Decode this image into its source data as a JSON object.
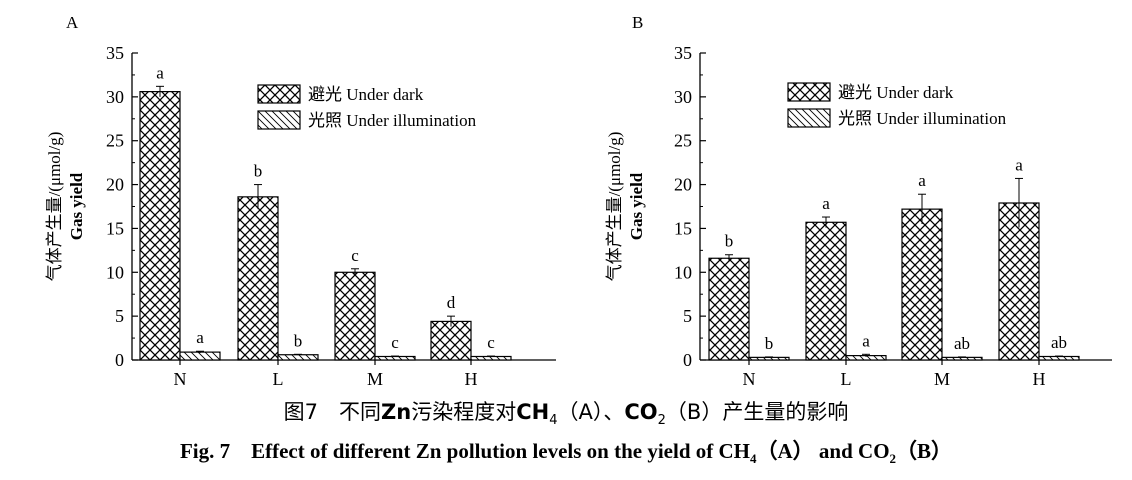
{
  "caption": {
    "cn_prefix": "图7　不同",
    "cn_zn": "Zn",
    "cn_mid": "污染程度对",
    "cn_ch": "CH",
    "cn_ch_sub": "4",
    "cn_a": "（A）、",
    "cn_co": "CO",
    "cn_co_sub": "2",
    "cn_end": "（B）产生量的影响",
    "en_main": "Fig. 7 Effect of different Zn pollution levels on the yield of CH",
    "en_ch_sub": "4",
    "en_mid": "（A） and CO",
    "en_co_sub": "2",
    "en_end": "（B）"
  },
  "legend": {
    "dark": "避光 Under dark",
    "light": "光照 Under illumination"
  },
  "chart_data": [
    {
      "panel": "A",
      "type": "bar",
      "ylabel_cn": "气体产生量/(μmol/g)",
      "ylabel_en": "Gas yield",
      "xlabel": "",
      "categories": [
        "N",
        "L",
        "M",
        "H"
      ],
      "ylim": [
        0,
        35
      ],
      "yticks": [
        0,
        5,
        10,
        15,
        20,
        25,
        30,
        35
      ],
      "series": [
        {
          "name": "避光 Under dark",
          "pattern": "crosshatch",
          "values": [
            30.6,
            18.6,
            10.0,
            4.4
          ],
          "errors": [
            0.6,
            1.4,
            0.4,
            0.6
          ],
          "letters": [
            "a",
            "b",
            "c",
            "d"
          ]
        },
        {
          "name": "光照 Under illumination",
          "pattern": "diagonal",
          "values": [
            0.9,
            0.6,
            0.4,
            0.4
          ],
          "errors": [
            0.1,
            0.05,
            0.05,
            0.05
          ],
          "letters": [
            "a",
            "b",
            "c",
            "c"
          ]
        }
      ]
    },
    {
      "panel": "B",
      "type": "bar",
      "ylabel_cn": "气体产生量/(μmol/g)",
      "ylabel_en": "Gas yield",
      "xlabel": "",
      "categories": [
        "N",
        "L",
        "M",
        "H"
      ],
      "ylim": [
        0,
        35
      ],
      "yticks": [
        0,
        5,
        10,
        15,
        20,
        25,
        30,
        35
      ],
      "series": [
        {
          "name": "避光 Under dark",
          "pattern": "crosshatch",
          "values": [
            11.6,
            15.7,
            17.2,
            17.9
          ],
          "errors": [
            0.4,
            0.6,
            1.7,
            2.8
          ],
          "letters": [
            "b",
            "a",
            "a",
            "a"
          ]
        },
        {
          "name": "光照 Under illumination",
          "pattern": "diagonal",
          "values": [
            0.3,
            0.5,
            0.3,
            0.4
          ],
          "errors": [
            0.05,
            0.15,
            0.05,
            0.05
          ],
          "letters": [
            "b",
            "a",
            "ab",
            "ab"
          ]
        }
      ]
    }
  ]
}
